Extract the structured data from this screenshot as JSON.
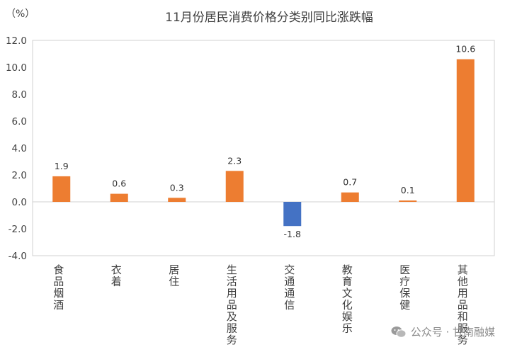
{
  "chart_data": {
    "type": "bar",
    "title": "11月份居民消费价格分类别同比涨跌幅",
    "unit_label": "（%）",
    "categories": [
      "食品烟酒",
      "衣着",
      "居住",
      "生活用品及服务",
      "交通通信",
      "教育文化娱乐",
      "医疗保健",
      "其他用品和服务"
    ],
    "values": [
      1.9,
      0.6,
      0.3,
      2.3,
      -1.8,
      0.7,
      0.1,
      10.6
    ],
    "value_labels": [
      "1.9",
      "0.6",
      "0.3",
      "2.3",
      "-1.8",
      "0.7",
      "0.1",
      "10.6"
    ],
    "ylim": [
      -4.0,
      12.0
    ],
    "yticks": [
      "12.0",
      "10.0",
      "8.0",
      "6.0",
      "4.0",
      "2.0",
      "0.0",
      "-2.0",
      "-4.0"
    ],
    "grid": false,
    "legend": "none",
    "colors": {
      "positive": "#ED7D31",
      "negative": "#4472C4",
      "frame": "#D0D0D0"
    }
  },
  "watermark": {
    "text": "公众号 · 甘南融媒",
    "icon": "wechat-icon"
  }
}
